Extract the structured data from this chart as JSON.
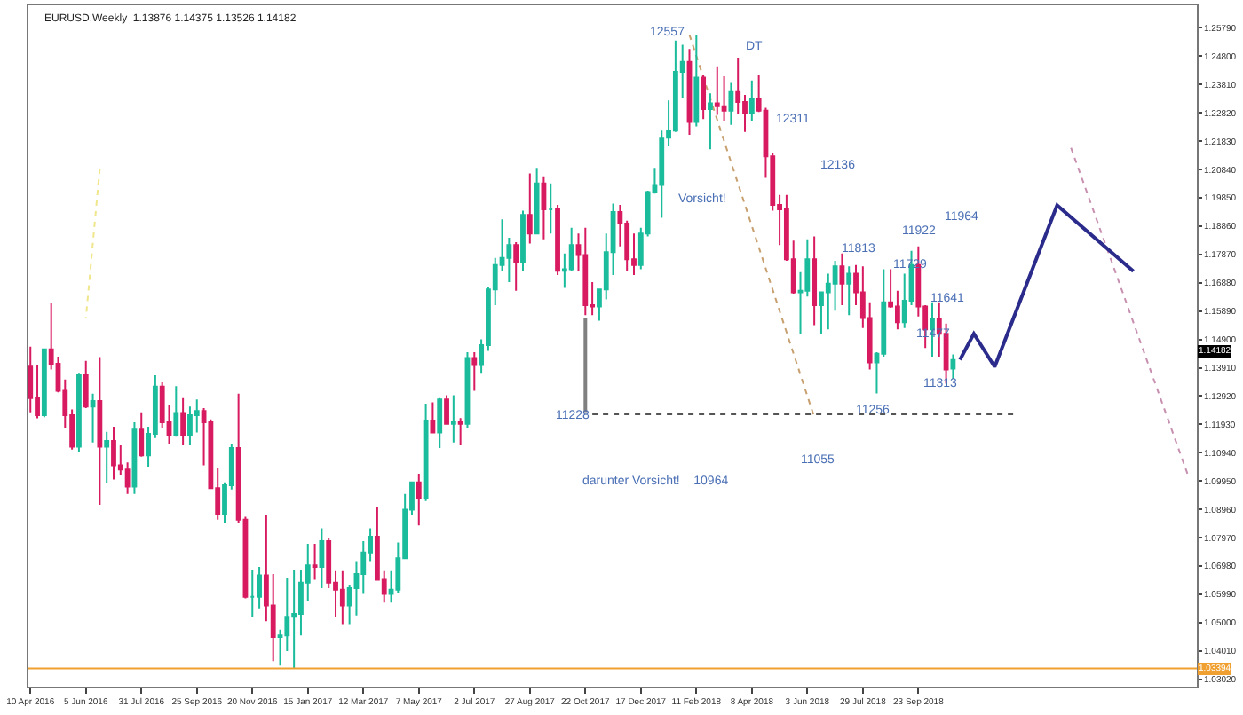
{
  "chart_data": {
    "type": "candlestick",
    "title": "EURUSD,Weekly  1.13876 1.14375 1.13526 1.14182",
    "colors": [
      "#d81b60",
      "#d81b60",
      "#1abc9c",
      "#d81b60",
      "#d81b60",
      "#d81b60",
      "#d81b60",
      "#1abc9c",
      "#d81b60",
      "#1abc9c",
      "#d81b60",
      "#1abc9c",
      "#d81b60",
      "#d81b60",
      "#d81b60",
      "#1abc9c",
      "#d81b60",
      "#1abc9c",
      "#1abc9c",
      "#d81b60",
      "#d81b60",
      "#1abc9c",
      "#d81b60",
      "#1abc9c",
      "#1abc9c",
      "#d81b60",
      "#d81b60",
      "#d81b60",
      "#1abc9c",
      "#1abc9c",
      "#d81b60",
      "#d81b60",
      "#1abc9c",
      "#1abc9c",
      "#d81b60",
      "#d81b60",
      "#1abc9c",
      "#1abc9c",
      "#1abc9c",
      "#1abc9c",
      "#1abc9c",
      "#d81b60",
      "#1abc9c",
      "#d81b60",
      "#d81b60",
      "#d81b60",
      "#1abc9c",
      "#1abc9c",
      "#1abc9c",
      "#1abc9c",
      "#d81b60",
      "#d81b60",
      "#1abc9c",
      "#1abc9c",
      "#1abc9c",
      "#1abc9c",
      "#d81b60",
      "#1abc9c",
      "#d81b60",
      "#1abc9c",
      "#d81b60",
      "#1abc9c",
      "#d81b60",
      "#1abc9c",
      "#d81b60",
      "#1abc9c",
      "#1abc9c",
      "#1abc9c",
      "#1abc9c",
      "#1abc9c",
      "#d81b60",
      "#1abc9c",
      "#d81b60",
      "#1abc9c",
      "#d81b60",
      "#1abc9c",
      "#d81b60",
      "#1abc9c",
      "#1abc9c",
      "#d81b60",
      "#d81b60",
      "#d81b60",
      "#1abc9c",
      "#1abc9c",
      "#1abc9c",
      "#d81b60",
      "#d81b60",
      "#d81b60",
      "#1abc9c",
      "#1abc9c",
      "#1abc9c",
      "#1abc9c",
      "#1abc9c",
      "#1abc9c",
      "#1abc9c",
      "#d81b60",
      "#1abc9c",
      "#d81b60",
      "#1abc9c",
      "#d81b60",
      "#d81b60",
      "#1abc9c",
      "#d81b60",
      "#d81b60",
      "#1abc9c",
      "#d81b60",
      "#d81b60",
      "#d81b60",
      "#d81b60",
      "#d81b60",
      "#d81b60",
      "#1abc9c",
      "#1abc9c",
      "#d81b60",
      "#1abc9c",
      "#1abc9c",
      "#1abc9c",
      "#d81b60",
      "#1abc9c",
      "#d81b60",
      "#d81b60",
      "#d81b60",
      "#1abc9c",
      "#1abc9c",
      "#d81b60",
      "#d81b60",
      "#1abc9c",
      "#1abc9c",
      "#d81b60",
      "#d81b60",
      "#1abc9c",
      "#d81b60",
      "#d81b60",
      "#1abc9c"
    ],
    "x": [
      "2016-04-10",
      "2016-04-17",
      "2016-04-24",
      "2016-05-01",
      "2016-05-08",
      "2016-05-15",
      "2016-05-22",
      "2016-05-29",
      "2016-06-05",
      "2016-06-12",
      "2016-06-19",
      "2016-06-26",
      "2016-07-03",
      "2016-07-10",
      "2016-07-17",
      "2016-07-24",
      "2016-07-31",
      "2016-08-07",
      "2016-08-14",
      "2016-08-21",
      "2016-08-28",
      "2016-09-04",
      "2016-09-11",
      "2016-09-18",
      "2016-09-25",
      "2016-10-02",
      "2016-10-09",
      "2016-10-16",
      "2016-10-23",
      "2016-10-30",
      "2016-11-06",
      "2016-11-13",
      "2016-11-20",
      "2016-11-27",
      "2016-12-04",
      "2016-12-11",
      "2016-12-18",
      "2016-12-25",
      "2017-01-01",
      "2017-01-08",
      "2017-01-15",
      "2017-01-22",
      "2017-01-29",
      "2017-02-05",
      "2017-02-12",
      "2017-02-19",
      "2017-02-26",
      "2017-03-05",
      "2017-03-12",
      "2017-03-19",
      "2017-03-26",
      "2017-04-02",
      "2017-04-09",
      "2017-04-16",
      "2017-04-23",
      "2017-04-30",
      "2017-05-07",
      "2017-05-14",
      "2017-05-21",
      "2017-05-28",
      "2017-06-04",
      "2017-06-11",
      "2017-06-18",
      "2017-06-25",
      "2017-07-02",
      "2017-07-09",
      "2017-07-16",
      "2017-07-23",
      "2017-07-30",
      "2017-08-06",
      "2017-08-13",
      "2017-08-20",
      "2017-08-27",
      "2017-09-03",
      "2017-09-10",
      "2017-09-17",
      "2017-09-24",
      "2017-10-01",
      "2017-10-08",
      "2017-10-15",
      "2017-10-22",
      "2017-10-29",
      "2017-11-05",
      "2017-11-12",
      "2017-11-19",
      "2017-11-26",
      "2017-12-03",
      "2017-12-10",
      "2017-12-17",
      "2017-12-24",
      "2017-12-31",
      "2018-01-07",
      "2018-01-14",
      "2018-01-21",
      "2018-01-28",
      "2018-02-04",
      "2018-02-11",
      "2018-02-18",
      "2018-02-25",
      "2018-03-04",
      "2018-03-11",
      "2018-03-18",
      "2018-03-25",
      "2018-04-01",
      "2018-04-08",
      "2018-04-15",
      "2018-04-22",
      "2018-04-29",
      "2018-05-06",
      "2018-05-13",
      "2018-05-20",
      "2018-05-27",
      "2018-06-03",
      "2018-06-10",
      "2018-06-17",
      "2018-06-24",
      "2018-07-01",
      "2018-07-08",
      "2018-07-15",
      "2018-07-22",
      "2018-07-29",
      "2018-08-05",
      "2018-08-12",
      "2018-08-19",
      "2018-08-26",
      "2018-09-02",
      "2018-09-09",
      "2018-09-16",
      "2018-09-23",
      "2018-09-30",
      "2018-10-07",
      "2018-10-14",
      "2018-10-21",
      "2018-10-28"
    ],
    "ohlc": [
      [
        1.1395,
        1.1465,
        1.1235,
        1.1285
      ],
      [
        1.1285,
        1.1399,
        1.1214,
        1.1225
      ],
      [
        1.1225,
        1.1455,
        1.1218,
        1.1455
      ],
      [
        1.1455,
        1.1616,
        1.1385,
        1.1405
      ],
      [
        1.1405,
        1.143,
        1.1305,
        1.131
      ],
      [
        1.131,
        1.135,
        1.118,
        1.1225
      ],
      [
        1.1225,
        1.1245,
        1.1105,
        1.1115
      ],
      [
        1.1115,
        1.137,
        1.1097,
        1.1365
      ],
      [
        1.1365,
        1.1415,
        1.125,
        1.1255
      ],
      [
        1.1255,
        1.13,
        1.113,
        1.1275
      ],
      [
        1.1275,
        1.1428,
        1.0912,
        1.1115
      ],
      [
        1.1115,
        1.1167,
        1.0988,
        1.1135
      ],
      [
        1.1135,
        1.1185,
        1.1,
        1.105
      ],
      [
        1.105,
        1.112,
        1.1015,
        1.1035
      ],
      [
        1.1035,
        1.106,
        1.095,
        1.0975
      ],
      [
        1.0975,
        1.12,
        1.095,
        1.1175
      ],
      [
        1.1175,
        1.1235,
        1.108,
        1.1085
      ],
      [
        1.1085,
        1.1185,
        1.1045,
        1.116
      ],
      [
        1.116,
        1.1365,
        1.1145,
        1.1325
      ],
      [
        1.1325,
        1.134,
        1.118,
        1.12
      ],
      [
        1.12,
        1.126,
        1.1125,
        1.1155
      ],
      [
        1.1155,
        1.1327,
        1.115,
        1.1233
      ],
      [
        1.1233,
        1.1285,
        1.112,
        1.1155
      ],
      [
        1.1155,
        1.1255,
        1.112,
        1.1225
      ],
      [
        1.1225,
        1.128,
        1.1165,
        1.124
      ],
      [
        1.124,
        1.125,
        1.105,
        1.12
      ],
      [
        1.12,
        1.121,
        1.097,
        1.097
      ],
      [
        1.097,
        1.104,
        1.086,
        1.088
      ],
      [
        1.088,
        1.099,
        1.085,
        1.098
      ],
      [
        1.098,
        1.1125,
        1.0965,
        1.111
      ],
      [
        1.111,
        1.13,
        1.085,
        1.086
      ],
      [
        1.086,
        1.087,
        1.0585,
        1.059
      ],
      [
        1.059,
        1.0685,
        1.052,
        1.059
      ],
      [
        1.059,
        1.0695,
        1.055,
        1.0665
      ],
      [
        1.0665,
        1.0875,
        1.0505,
        1.056
      ],
      [
        1.056,
        1.067,
        1.0365,
        1.045
      ],
      [
        1.045,
        1.0475,
        1.035,
        1.0455
      ],
      [
        1.0455,
        1.0655,
        1.04,
        1.052
      ],
      [
        1.052,
        1.0685,
        1.034,
        1.053
      ],
      [
        1.053,
        1.0685,
        1.0455,
        1.064
      ],
      [
        1.064,
        1.0775,
        1.0575,
        1.07
      ],
      [
        1.07,
        1.0775,
        1.065,
        1.0695
      ],
      [
        1.0695,
        1.083,
        1.062,
        1.0785
      ],
      [
        1.0785,
        1.0795,
        1.062,
        1.064
      ],
      [
        1.064,
        1.068,
        1.052,
        1.0615
      ],
      [
        1.0615,
        1.068,
        1.0495,
        1.056
      ],
      [
        1.056,
        1.063,
        1.0495,
        1.062
      ],
      [
        1.062,
        1.0715,
        1.0525,
        1.067
      ],
      [
        1.067,
        1.0785,
        1.06,
        1.0745
      ],
      [
        1.0745,
        1.083,
        1.0715,
        1.08
      ],
      [
        1.08,
        1.0905,
        1.065,
        1.065
      ],
      [
        1.065,
        1.068,
        1.057,
        1.06
      ],
      [
        1.06,
        1.068,
        1.057,
        1.0615
      ],
      [
        1.0615,
        1.078,
        1.0605,
        1.0725
      ],
      [
        1.0725,
        1.095,
        1.0725,
        1.0895
      ],
      [
        1.0895,
        1.099,
        1.0875,
        1.099
      ],
      [
        1.099,
        1.102,
        1.084,
        1.0935
      ],
      [
        1.0935,
        1.1265,
        1.0925,
        1.1205
      ],
      [
        1.1205,
        1.127,
        1.1165,
        1.1165
      ],
      [
        1.1165,
        1.1285,
        1.111,
        1.128
      ],
      [
        1.128,
        1.1295,
        1.1195,
        1.1195
      ],
      [
        1.1195,
        1.1295,
        1.113,
        1.12
      ],
      [
        1.12,
        1.1215,
        1.112,
        1.1195
      ],
      [
        1.1195,
        1.1445,
        1.118,
        1.1425
      ],
      [
        1.1425,
        1.1445,
        1.131,
        1.14
      ],
      [
        1.14,
        1.149,
        1.137,
        1.147
      ],
      [
        1.147,
        1.1675,
        1.145,
        1.1665
      ],
      [
        1.1665,
        1.1775,
        1.161,
        1.175
      ],
      [
        1.175,
        1.191,
        1.173,
        1.1775
      ],
      [
        1.1775,
        1.1845,
        1.169,
        1.182
      ],
      [
        1.182,
        1.183,
        1.166,
        1.176
      ],
      [
        1.176,
        1.194,
        1.173,
        1.1925
      ],
      [
        1.1925,
        1.207,
        1.1825,
        1.186
      ],
      [
        1.186,
        1.209,
        1.186,
        1.2035
      ],
      [
        1.2035,
        1.206,
        1.184,
        1.1945
      ],
      [
        1.1945,
        1.2035,
        1.186,
        1.1945
      ],
      [
        1.1945,
        1.196,
        1.1715,
        1.173
      ],
      [
        1.173,
        1.179,
        1.167,
        1.1735
      ],
      [
        1.1735,
        1.188,
        1.173,
        1.182
      ],
      [
        1.182,
        1.186,
        1.173,
        1.1785
      ],
      [
        1.1785,
        1.188,
        1.1575,
        1.161
      ],
      [
        1.161,
        1.169,
        1.1575,
        1.1605
      ],
      [
        1.1605,
        1.1665,
        1.1555,
        1.1665
      ],
      [
        1.1665,
        1.186,
        1.163,
        1.1795
      ],
      [
        1.1795,
        1.1965,
        1.1715,
        1.1935
      ],
      [
        1.1935,
        1.196,
        1.1815,
        1.1895
      ],
      [
        1.1895,
        1.1905,
        1.173,
        1.177
      ],
      [
        1.177,
        1.186,
        1.1715,
        1.175
      ],
      [
        1.175,
        1.188,
        1.1735,
        1.186
      ],
      [
        1.186,
        1.201,
        1.185,
        1.2005
      ],
      [
        1.2005,
        1.209,
        1.2,
        1.203
      ],
      [
        1.203,
        1.222,
        1.1915,
        1.2195
      ],
      [
        1.2195,
        1.2325,
        1.2165,
        1.222
      ],
      [
        1.222,
        1.2535,
        1.2215,
        1.2425
      ],
      [
        1.2425,
        1.252,
        1.2335,
        1.246
      ],
      [
        1.246,
        1.2505,
        1.2205,
        1.225
      ],
      [
        1.225,
        1.2555,
        1.2235,
        1.2405
      ],
      [
        1.2405,
        1.2415,
        1.226,
        1.2295
      ],
      [
        1.2295,
        1.235,
        1.2155,
        1.2315
      ],
      [
        1.2315,
        1.2445,
        1.2275,
        1.2305
      ],
      [
        1.2305,
        1.241,
        1.2255,
        1.229
      ],
      [
        1.229,
        1.239,
        1.224,
        1.2355
      ],
      [
        1.2355,
        1.2475,
        1.228,
        1.232
      ],
      [
        1.232,
        1.2345,
        1.2215,
        1.228
      ],
      [
        1.228,
        1.2395,
        1.2255,
        1.233
      ],
      [
        1.233,
        1.2415,
        1.2285,
        1.229
      ],
      [
        1.229,
        1.23,
        1.2055,
        1.213
      ],
      [
        1.213,
        1.214,
        1.194,
        1.196
      ],
      [
        1.196,
        1.1995,
        1.182,
        1.1945
      ],
      [
        1.1945,
        1.1995,
        1.1765,
        1.177
      ],
      [
        1.177,
        1.1835,
        1.165,
        1.1655
      ],
      [
        1.1655,
        1.1725,
        1.151,
        1.166
      ],
      [
        1.166,
        1.184,
        1.164,
        1.177
      ],
      [
        1.177,
        1.185,
        1.154,
        1.161
      ],
      [
        1.161,
        1.1655,
        1.151,
        1.1655
      ],
      [
        1.1655,
        1.172,
        1.1525,
        1.1685
      ],
      [
        1.1685,
        1.1765,
        1.159,
        1.1745
      ],
      [
        1.1745,
        1.179,
        1.161,
        1.1685
      ],
      [
        1.1685,
        1.1745,
        1.1575,
        1.172
      ],
      [
        1.172,
        1.175,
        1.161,
        1.1655
      ],
      [
        1.1655,
        1.1745,
        1.153,
        1.1565
      ],
      [
        1.1565,
        1.162,
        1.1385,
        1.141
      ],
      [
        1.141,
        1.1445,
        1.1301,
        1.144
      ],
      [
        1.144,
        1.1735,
        1.143,
        1.162
      ],
      [
        1.162,
        1.1735,
        1.16,
        1.1605
      ],
      [
        1.1605,
        1.166,
        1.1525,
        1.155
      ],
      [
        1.155,
        1.172,
        1.153,
        1.1625
      ],
      [
        1.1625,
        1.18,
        1.161,
        1.175
      ],
      [
        1.175,
        1.1815,
        1.157,
        1.1605
      ],
      [
        1.1605,
        1.161,
        1.146,
        1.1525
      ],
      [
        1.1525,
        1.162,
        1.143,
        1.156
      ],
      [
        1.156,
        1.162,
        1.143,
        1.151
      ],
      [
        1.151,
        1.1545,
        1.1335,
        1.1385
      ],
      [
        1.13876,
        1.14375,
        1.13526,
        1.14182
      ]
    ],
    "series": [
      {
        "type": "line",
        "color": "#f0e68c",
        "line_style": "dotted",
        "x": [
          "2016-06-19",
          "2016-06-05"
        ],
        "values": [
          1.2087,
          1.1564
        ]
      },
      {
        "type": "line",
        "color": "#808080",
        "line_style": "solid",
        "x": [
          "2017-10-22",
          "2017-10-22"
        ],
        "values": [
          1.1565,
          1.1236
        ]
      },
      {
        "type": "line",
        "color": "#555555",
        "line_style": "dotted",
        "x": [
          "2017-10-29",
          "2018-12-30"
        ],
        "values": [
          1.1228,
          1.1228
        ]
      },
      {
        "type": "line",
        "color": "#c8a070",
        "line_style": "dotted",
        "x": [
          "2018-02-04",
          "2018-06-10"
        ],
        "values": [
          1.2555,
          1.1218
        ]
      },
      {
        "type": "line",
        "color": "#c890b0",
        "line_style": "dotted",
        "x": [
          "2019-02-24",
          "2019-06-23"
        ],
        "values": [
          1.216,
          1.1006
        ]
      },
      {
        "type": "line",
        "color": "#2b2b8c",
        "line_style": "solid",
        "x": [
          "2018-11-04",
          "2018-11-18",
          "2018-12-09",
          "2019-02-10",
          "2019-04-28"
        ],
        "values": [
          1.1419,
          1.151,
          1.1394,
          1.1959,
          1.1728
        ]
      }
    ],
    "ref_lines": [
      {
        "axis": "y",
        "value": 1.03394,
        "label": "1.03394",
        "color": "#f0a030"
      }
    ],
    "annotations": [
      {
        "text": "12557",
        "x": "2018-02-04",
        "y": 1.2561
      },
      "DT",
      "12311",
      "12136",
      "Vorsicht!",
      "11964",
      "11922",
      "11813",
      "11729",
      "11641",
      {
        "text": "11477",
        "x": "2018-10-28",
        "y": 1.151
      },
      {
        "text": "11313",
        "x": "2018-11-04",
        "y": 1.1334
      },
      "11256",
      {
        "text": "11228",
        "x": "2017-10-29",
        "y": 1.1224
      },
      "11055",
      "darunter Vorsicht!    10964",
      "1.14182"
    ],
    "xlim": [
      "2016-04-08",
      "2019-07-01"
    ],
    "ylim": [
      1.0276,
      1.2658
    ],
    "xticks": [
      {
        "value": "2016-04-10",
        "label": "10 Apr 2016"
      },
      {
        "value": "2016-06-05",
        "label": "5 Jun 2016"
      },
      {
        "value": "2016-07-31",
        "label": "31 Jul 2016"
      },
      {
        "value": "2016-09-25",
        "label": "25 Sep 2016"
      },
      {
        "value": "2016-11-20",
        "label": "20 Nov 2016"
      },
      {
        "value": "2017-01-15",
        "label": "15 Jan 2017"
      },
      {
        "value": "2017-03-12",
        "label": "12 Mar 2017"
      },
      {
        "value": "2017-05-07",
        "label": "7 May 2017"
      },
      {
        "value": "2017-07-02",
        "label": "2 Jul 2017"
      },
      {
        "value": "2017-08-27",
        "label": "27 Aug 2017"
      },
      {
        "value": "2017-10-22",
        "label": "22 Oct 2017"
      },
      {
        "value": "2017-12-17",
        "label": "17 Dec 2017"
      },
      {
        "value": "2018-02-11",
        "label": "11 Feb 2018"
      },
      {
        "value": "2018-04-08",
        "label": "8 Apr 2018"
      },
      {
        "value": "2018-06-03",
        "label": "3 Jun 2018"
      },
      {
        "value": "2018-07-29",
        "label": "29 Jul 2018"
      },
      {
        "value": "2018-09-23",
        "label": "23 Sep 2018"
      }
    ],
    "yticks": [
      {
        "value": 1.2579,
        "label": "1.25790"
      },
      {
        "value": 1.248,
        "label": "1.24800"
      },
      {
        "value": 1.2381,
        "label": "1.23810"
      },
      {
        "value": 1.2282,
        "label": "1.22820"
      },
      {
        "value": 1.2183,
        "label": "1.21830"
      },
      {
        "value": 1.2084,
        "label": "1.20840"
      },
      {
        "value": 1.1985,
        "label": "1.19850"
      },
      {
        "value": 1.1886,
        "label": "1.18860"
      },
      {
        "value": 1.1787,
        "label": "1.17870"
      },
      {
        "value": 1.1688,
        "label": "1.16880"
      },
      {
        "value": 1.1589,
        "label": "1.15890"
      },
      {
        "value": 1.149,
        "label": "1.14900"
      },
      {
        "value": 1.1391,
        "label": "1.13910"
      },
      {
        "value": 1.1292,
        "label": "1.12920"
      },
      {
        "value": 1.1193,
        "label": "1.11930"
      },
      {
        "value": 1.1094,
        "label": "1.10940"
      },
      {
        "value": 1.0995,
        "label": "1.09950"
      },
      {
        "value": 1.0896,
        "label": "1.08960"
      },
      {
        "value": 1.0797,
        "label": "1.07970"
      },
      {
        "value": 1.0698,
        "label": "1.06980"
      },
      {
        "value": 1.0599,
        "label": "1.05990"
      },
      {
        "value": 1.05,
        "label": "1.05000"
      },
      {
        "value": 1.0401,
        "label": "1.04010"
      },
      {
        "value": 1.0302,
        "label": "1.03020"
      }
    ]
  }
}
